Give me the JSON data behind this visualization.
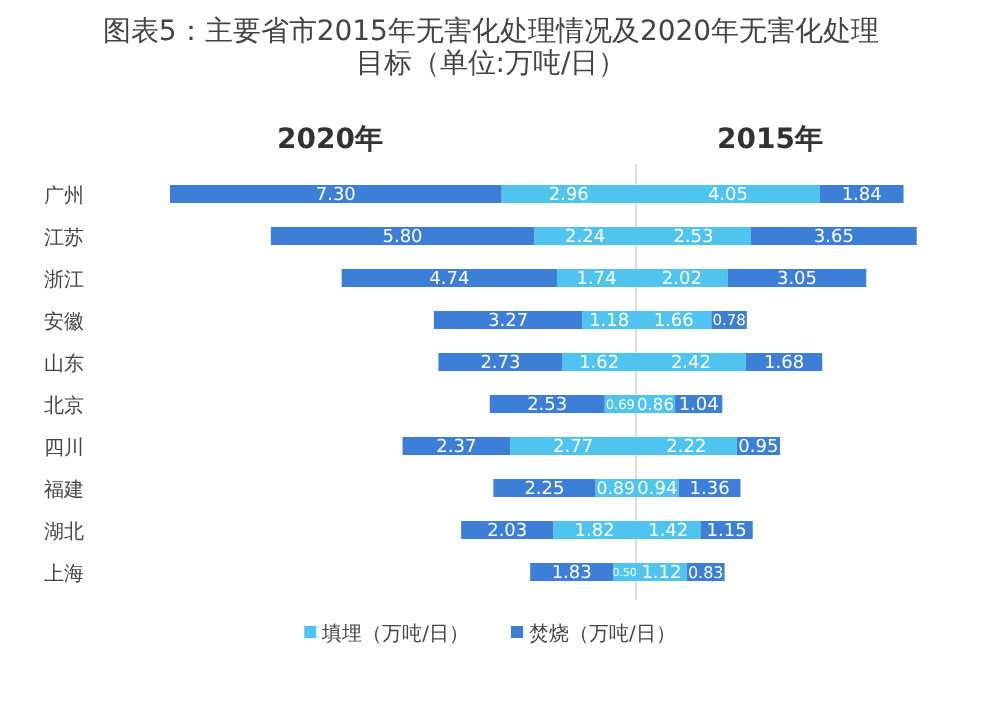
{
  "chart_data": [
    {
      "type": "bar",
      "orientation": "horizontal",
      "stacked": true,
      "title": "图表5：主要省市2015年无害化处理情况及2020年无害化处理目标（单位:万吨/日）",
      "subtitle": "2020年",
      "legend": false,
      "categories": [
        "广州",
        "江苏",
        "浙江",
        "安徽",
        "山东",
        "北京",
        "四川",
        "福建",
        "湖北",
        "上海"
      ],
      "series": [
        {
          "color": "#4fc4ef",
          "values": [
            2.96,
            2.24,
            1.74,
            1.18,
            1.62,
            0.69,
            2.77,
            0.89,
            1.82,
            0.5
          ],
          "value_labels": [
            "2.96",
            "2.24",
            "1.74",
            "1.18",
            "1.62",
            "0.69",
            "2.77",
            "0.89",
            "1.82",
            "0.50"
          ]
        },
        {
          "color": "#3d7fd6",
          "values": [
            7.3,
            5.8,
            4.74,
            3.27,
            2.73,
            2.53,
            2.37,
            2.25,
            2.03,
            1.83
          ],
          "value_labels": [
            "7.30",
            "5.80",
            "4.74",
            "3.27",
            "2.73",
            "2.53",
            "2.37",
            "2.25",
            "2.03",
            "1.83"
          ]
        }
      ]
    },
    {
      "type": "bar",
      "orientation": "horizontal",
      "stacked": true,
      "subtitle": "2015年",
      "legend": "bottom",
      "series": [
        {
          "name": "填埋（万吨/日）",
          "color": "#4fc4ef",
          "values": [
            4.05,
            2.53,
            2.02,
            1.66,
            2.42,
            0.86,
            2.22,
            0.94,
            1.42,
            1.12
          ],
          "value_labels": [
            "4.05",
            "2.53",
            "2.02",
            "1.66",
            "2.42",
            "0.86",
            "2.22",
            "0.94",
            "1.42",
            "1.12"
          ]
        },
        {
          "name": "焚烧（万吨/日）",
          "color": "#3d7fd6",
          "values": [
            1.84,
            3.65,
            3.05,
            0.78,
            1.68,
            1.04,
            0.95,
            1.36,
            1.15,
            0.83
          ],
          "value_labels": [
            "1.84",
            "3.65",
            "3.05",
            "0.78",
            "1.68",
            "1.04",
            "0.95",
            "1.36",
            "1.15",
            "0.83"
          ]
        }
      ]
    }
  ]
}
